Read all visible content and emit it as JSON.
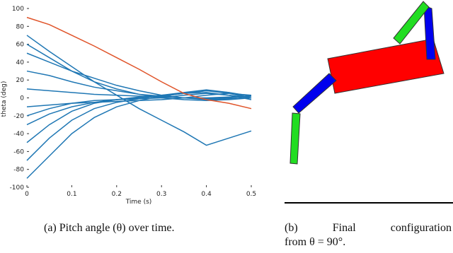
{
  "chart_data": {
    "type": "line",
    "xlabel": "Time (s)",
    "ylabel": "theta (deg)",
    "x": [
      0,
      0.05,
      0.1,
      0.15,
      0.2,
      0.25,
      0.3,
      0.35,
      0.4,
      0.45,
      0.5
    ],
    "xlim": [
      0,
      0.5
    ],
    "xticks": [
      0,
      0.1,
      0.2,
      0.3,
      0.4,
      0.5
    ],
    "ylim": [
      -100,
      100
    ],
    "yticks": [
      -100,
      -80,
      -60,
      -40,
      -20,
      0,
      20,
      40,
      60,
      80,
      100
    ],
    "series": [
      {
        "color": "#1f77b4",
        "values": [
          70,
          52,
          35,
          18,
          3,
          -12,
          -25,
          -38,
          -53,
          -45,
          -37
        ]
      },
      {
        "color": "#1f77b4",
        "values": [
          60,
          45,
          30,
          18,
          10,
          4,
          0,
          -2,
          -3,
          -2,
          0
        ]
      },
      {
        "color": "#1f77b4",
        "values": [
          50,
          40,
          30,
          22,
          14,
          8,
          3,
          0,
          -2,
          -1,
          0
        ]
      },
      {
        "color": "#1f77b4",
        "values": [
          30,
          25,
          18,
          12,
          8,
          4,
          2,
          0,
          0,
          1,
          2
        ]
      },
      {
        "color": "#1f77b4",
        "values": [
          10,
          8,
          6,
          4,
          3,
          2,
          1,
          0,
          -1,
          0,
          2
        ]
      },
      {
        "color": "#1f77b4",
        "values": [
          -10,
          -8,
          -6,
          -5,
          -4,
          -3,
          -2,
          0,
          3,
          5,
          3
        ]
      },
      {
        "color": "#1f77b4",
        "values": [
          -20,
          -12,
          -6,
          -3,
          -2,
          -1,
          0,
          3,
          5,
          3,
          0
        ]
      },
      {
        "color": "#1f77b4",
        "values": [
          -30,
          -18,
          -10,
          -5,
          -2,
          0,
          2,
          5,
          8,
          6,
          2
        ]
      },
      {
        "color": "#1f77b4",
        "values": [
          -50,
          -30,
          -15,
          -6,
          -2,
          1,
          3,
          6,
          9,
          6,
          0
        ]
      },
      {
        "color": "#1f77b4",
        "values": [
          -70,
          -45,
          -25,
          -12,
          -5,
          -1,
          3,
          5,
          8,
          5,
          0
        ]
      },
      {
        "color": "#1f77b4",
        "values": [
          -90,
          -65,
          -40,
          -22,
          -10,
          -3,
          2,
          5,
          6,
          3,
          -2
        ]
      },
      {
        "color": "#e0542a",
        "values": [
          90,
          82,
          70,
          58,
          45,
          32,
          18,
          5,
          -2,
          -6,
          -12
        ]
      }
    ]
  },
  "captions": {
    "a": "(a) Pitch angle (θ) over time.",
    "b_line1": "(b) Final configuration",
    "b_line2": "from θ = 90°."
  }
}
